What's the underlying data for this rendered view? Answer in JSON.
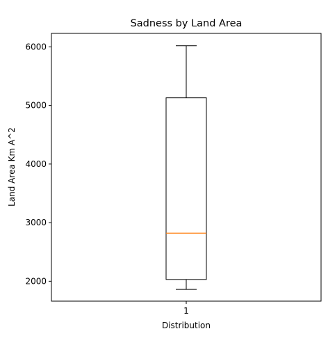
{
  "chart_data": {
    "type": "box",
    "title": "Sadness by Land Area",
    "xlabel": "Distribution",
    "ylabel": "Land Area Km A^2",
    "categories": [
      "1"
    ],
    "ylim": [
      1660,
      6230
    ],
    "yticks": [
      2000,
      3000,
      4000,
      5000,
      6000
    ],
    "grid": false,
    "series": [
      {
        "whisker_low": 1860,
        "q1": 2030,
        "median": 2820,
        "q3": 5130,
        "whisker_high": 6020
      }
    ],
    "colors": {
      "box": "#000000",
      "median": "#ff7f0e"
    }
  }
}
